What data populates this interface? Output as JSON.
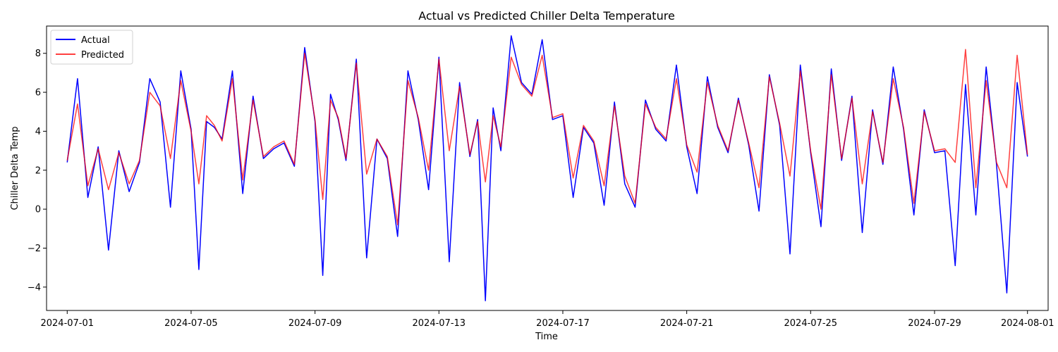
{
  "chart_data": {
    "type": "line",
    "title": "Actual vs Predicted Chiller Delta Temperature",
    "xlabel": "Time",
    "ylabel": "Chiller Delta Temp",
    "xlim": [
      "2024-06-30T08:00",
      "2024-08-01T16:00"
    ],
    "ylim": [
      -5.2,
      9.4
    ],
    "x_ticks": [
      "2024-07-01",
      "2024-07-05",
      "2024-07-09",
      "2024-07-13",
      "2024-07-17",
      "2024-07-21",
      "2024-07-25",
      "2024-07-29",
      "2024-08-01"
    ],
    "y_ticks": [
      -4,
      -2,
      0,
      2,
      4,
      6,
      8
    ],
    "grid": false,
    "legend_placement": "upper-left",
    "series": [
      {
        "name": "Actual",
        "color": "#0000ff",
        "x": [
          "2024-07-01T00:00",
          "2024-07-01T08:00",
          "2024-07-01T16:00",
          "2024-07-02T00:00",
          "2024-07-02T08:00",
          "2024-07-02T16:00",
          "2024-07-03T00:00",
          "2024-07-03T08:00",
          "2024-07-03T16:00",
          "2024-07-04T00:00",
          "2024-07-04T08:00",
          "2024-07-04T16:00",
          "2024-07-05T00:00",
          "2024-07-05T06:00",
          "2024-07-05T12:00",
          "2024-07-05T18:00",
          "2024-07-06T00:00",
          "2024-07-06T08:00",
          "2024-07-06T16:00",
          "2024-07-07T00:00",
          "2024-07-07T08:00",
          "2024-07-07T16:00",
          "2024-07-08T00:00",
          "2024-07-08T08:00",
          "2024-07-08T16:00",
          "2024-07-09T00:00",
          "2024-07-09T06:00",
          "2024-07-09T12:00",
          "2024-07-09T18:00",
          "2024-07-10T00:00",
          "2024-07-10T08:00",
          "2024-07-10T16:00",
          "2024-07-11T00:00",
          "2024-07-11T08:00",
          "2024-07-11T16:00",
          "2024-07-12T00:00",
          "2024-07-12T08:00",
          "2024-07-12T16:00",
          "2024-07-13T00:00",
          "2024-07-13T08:00",
          "2024-07-13T16:00",
          "2024-07-14T00:00",
          "2024-07-14T06:00",
          "2024-07-14T12:00",
          "2024-07-14T18:00",
          "2024-07-15T00:00",
          "2024-07-15T08:00",
          "2024-07-15T16:00",
          "2024-07-16T00:00",
          "2024-07-16T08:00",
          "2024-07-16T16:00",
          "2024-07-17T00:00",
          "2024-07-17T08:00",
          "2024-07-17T16:00",
          "2024-07-18T00:00",
          "2024-07-18T08:00",
          "2024-07-18T16:00",
          "2024-07-19T00:00",
          "2024-07-19T08:00",
          "2024-07-19T16:00",
          "2024-07-20T00:00",
          "2024-07-20T08:00",
          "2024-07-20T16:00",
          "2024-07-21T00:00",
          "2024-07-21T08:00",
          "2024-07-21T16:00",
          "2024-07-22T00:00",
          "2024-07-22T08:00",
          "2024-07-22T16:00",
          "2024-07-23T00:00",
          "2024-07-23T08:00",
          "2024-07-23T16:00",
          "2024-07-24T00:00",
          "2024-07-24T08:00",
          "2024-07-24T16:00",
          "2024-07-25T00:00",
          "2024-07-25T08:00",
          "2024-07-25T16:00",
          "2024-07-26T00:00",
          "2024-07-26T08:00",
          "2024-07-26T16:00",
          "2024-07-27T00:00",
          "2024-07-27T08:00",
          "2024-07-27T16:00",
          "2024-07-28T00:00",
          "2024-07-28T08:00",
          "2024-07-28T16:00",
          "2024-07-29T00:00",
          "2024-07-29T08:00",
          "2024-07-29T16:00",
          "2024-07-30T00:00",
          "2024-07-30T08:00",
          "2024-07-30T16:00",
          "2024-07-31T00:00",
          "2024-07-31T08:00",
          "2024-07-31T16:00",
          "2024-08-01T00:00"
        ],
        "values": [
          2.4,
          6.7,
          0.6,
          3.2,
          -2.1,
          3.0,
          0.9,
          2.4,
          6.7,
          5.5,
          0.1,
          7.1,
          4.1,
          -3.1,
          4.5,
          4.2,
          3.6,
          7.1,
          0.8,
          5.8,
          2.6,
          3.1,
          3.4,
          2.2,
          8.3,
          4.5,
          -3.4,
          5.9,
          4.6,
          2.5,
          7.7,
          -2.5,
          3.6,
          2.6,
          -1.4,
          7.1,
          4.6,
          1.0,
          7.8,
          -2.7,
          6.5,
          2.7,
          4.6,
          -4.7,
          5.2,
          3.0,
          8.9,
          6.5,
          5.9,
          8.7,
          4.6,
          4.8,
          0.6,
          4.2,
          3.4,
          0.2,
          5.5,
          1.3,
          0.1,
          5.6,
          4.1,
          3.5,
          7.4,
          3.2,
          0.8,
          6.8,
          4.2,
          2.9,
          5.7,
          3.3,
          -0.1,
          6.9,
          4.3,
          -2.3,
          7.4,
          2.9,
          -0.9,
          7.2,
          2.5,
          5.8,
          -1.2,
          5.1,
          2.3,
          7.3,
          4.1,
          -0.3,
          5.1,
          2.9,
          3.0,
          -2.9,
          6.4,
          -0.3,
          7.3,
          2.3,
          -4.3,
          6.5,
          2.7
        ]
      },
      {
        "name": "Predicted",
        "color": "#ff0000",
        "x": [
          "2024-07-01T00:00",
          "2024-07-01T08:00",
          "2024-07-01T16:00",
          "2024-07-02T00:00",
          "2024-07-02T08:00",
          "2024-07-02T16:00",
          "2024-07-03T00:00",
          "2024-07-03T08:00",
          "2024-07-03T16:00",
          "2024-07-04T00:00",
          "2024-07-04T08:00",
          "2024-07-04T16:00",
          "2024-07-05T00:00",
          "2024-07-05T06:00",
          "2024-07-05T12:00",
          "2024-07-05T18:00",
          "2024-07-06T00:00",
          "2024-07-06T08:00",
          "2024-07-06T16:00",
          "2024-07-07T00:00",
          "2024-07-07T08:00",
          "2024-07-07T16:00",
          "2024-07-08T00:00",
          "2024-07-08T08:00",
          "2024-07-08T16:00",
          "2024-07-09T00:00",
          "2024-07-09T06:00",
          "2024-07-09T12:00",
          "2024-07-09T18:00",
          "2024-07-10T00:00",
          "2024-07-10T08:00",
          "2024-07-10T16:00",
          "2024-07-11T00:00",
          "2024-07-11T08:00",
          "2024-07-11T16:00",
          "2024-07-12T00:00",
          "2024-07-12T08:00",
          "2024-07-12T16:00",
          "2024-07-13T00:00",
          "2024-07-13T08:00",
          "2024-07-13T16:00",
          "2024-07-14T00:00",
          "2024-07-14T06:00",
          "2024-07-14T12:00",
          "2024-07-14T18:00",
          "2024-07-15T00:00",
          "2024-07-15T08:00",
          "2024-07-15T16:00",
          "2024-07-16T00:00",
          "2024-07-16T08:00",
          "2024-07-16T16:00",
          "2024-07-17T00:00",
          "2024-07-17T08:00",
          "2024-07-17T16:00",
          "2024-07-18T00:00",
          "2024-07-18T08:00",
          "2024-07-18T16:00",
          "2024-07-19T00:00",
          "2024-07-19T08:00",
          "2024-07-19T16:00",
          "2024-07-20T00:00",
          "2024-07-20T08:00",
          "2024-07-20T16:00",
          "2024-07-21T00:00",
          "2024-07-21T08:00",
          "2024-07-21T16:00",
          "2024-07-22T00:00",
          "2024-07-22T08:00",
          "2024-07-22T16:00",
          "2024-07-23T00:00",
          "2024-07-23T08:00",
          "2024-07-23T16:00",
          "2024-07-24T00:00",
          "2024-07-24T08:00",
          "2024-07-24T16:00",
          "2024-07-25T00:00",
          "2024-07-25T08:00",
          "2024-07-25T16:00",
          "2024-07-26T00:00",
          "2024-07-26T08:00",
          "2024-07-26T16:00",
          "2024-07-27T00:00",
          "2024-07-27T08:00",
          "2024-07-27T16:00",
          "2024-07-28T00:00",
          "2024-07-28T08:00",
          "2024-07-28T16:00",
          "2024-07-29T00:00",
          "2024-07-29T08:00",
          "2024-07-29T16:00",
          "2024-07-30T00:00",
          "2024-07-30T08:00",
          "2024-07-30T16:00",
          "2024-07-31T00:00",
          "2024-07-31T08:00",
          "2024-07-31T16:00",
          "2024-08-01T00:00"
        ],
        "values": [
          2.5,
          5.4,
          1.2,
          3.1,
          1.0,
          2.9,
          1.3,
          2.5,
          6.0,
          5.3,
          2.6,
          6.6,
          4.0,
          1.3,
          4.8,
          4.3,
          3.5,
          6.7,
          1.5,
          5.6,
          2.7,
          3.2,
          3.5,
          2.3,
          8.0,
          4.6,
          0.5,
          5.6,
          4.7,
          2.6,
          7.5,
          1.8,
          3.6,
          2.7,
          -0.8,
          6.6,
          4.7,
          2.0,
          7.7,
          3.0,
          6.3,
          2.8,
          4.5,
          1.4,
          4.8,
          3.2,
          7.8,
          6.4,
          5.8,
          7.9,
          4.7,
          4.9,
          1.6,
          4.3,
          3.5,
          1.2,
          5.3,
          1.7,
          0.3,
          5.4,
          4.2,
          3.6,
          6.7,
          3.3,
          1.9,
          6.5,
          4.3,
          3.0,
          5.6,
          3.4,
          1.1,
          6.8,
          4.4,
          1.7,
          7.1,
          3.0,
          0.0,
          6.9,
          2.6,
          5.7,
          1.3,
          5.0,
          2.4,
          6.7,
          4.2,
          0.3,
          5.0,
          3.0,
          3.1,
          2.4,
          8.2,
          1.1,
          6.6,
          2.4,
          1.1,
          7.9,
          2.8
        ]
      }
    ]
  }
}
